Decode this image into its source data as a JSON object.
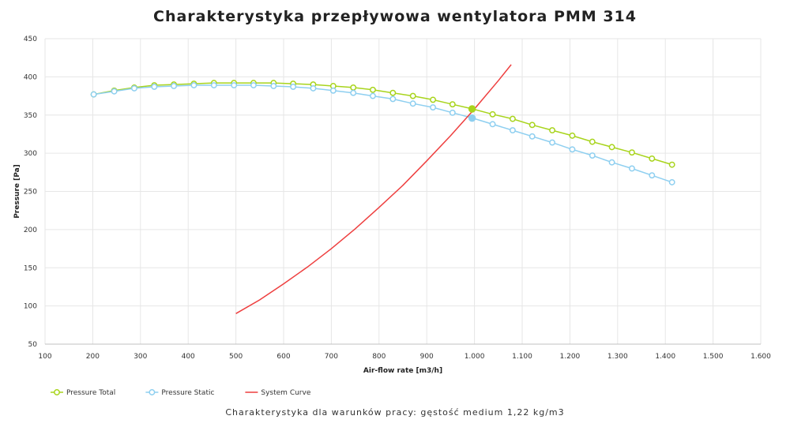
{
  "chart_data": {
    "type": "line",
    "title": "Charakterystyka przepływowa wentylatora PMM 314",
    "subtitle": "Charakterystyka dla warunków pracy: gęstość medium 1,22 kg/m3",
    "xlabel": "Air-flow rate [m3/h]",
    "ylabel": "Pressure [Pa]",
    "xlim": [
      100,
      1600
    ],
    "ylim": [
      50,
      450
    ],
    "x_ticks": [
      "100",
      "200",
      "300",
      "400",
      "500",
      "600",
      "700",
      "800",
      "900",
      "1.000",
      "1.100",
      "1.200",
      "1.300",
      "1.400",
      "1.500",
      "1.600"
    ],
    "y_ticks": [
      "50",
      "100",
      "150",
      "200",
      "250",
      "300",
      "350",
      "400",
      "450"
    ],
    "grid": true,
    "legend_position": "bottom-left",
    "series": [
      {
        "name": "Pressure Total",
        "color": "#a8d41c",
        "marker": "circle",
        "x": [
          202,
          245,
          287,
          329,
          370,
          412,
          454,
          496,
          537,
          579,
          620,
          662,
          704,
          746,
          787,
          829,
          871,
          913,
          954,
          996,
          1038,
          1080,
          1121,
          1163,
          1205,
          1247,
          1288,
          1330,
          1372,
          1414
        ],
        "y": [
          377,
          382,
          386,
          389,
          390,
          391,
          392,
          392,
          392,
          392,
          391,
          390,
          388,
          386,
          383,
          379,
          375,
          370,
          364,
          358,
          351,
          345,
          337,
          330,
          323,
          315,
          308,
          301,
          293,
          285
        ]
      },
      {
        "name": "Pressure Static",
        "color": "#8ecff0",
        "marker": "circle",
        "x": [
          202,
          245,
          287,
          329,
          370,
          412,
          454,
          496,
          537,
          579,
          620,
          662,
          704,
          746,
          787,
          829,
          871,
          913,
          954,
          996,
          1038,
          1080,
          1121,
          1163,
          1205,
          1247,
          1288,
          1330,
          1372,
          1414
        ],
        "y": [
          377,
          381,
          385,
          387,
          388,
          389,
          389,
          389,
          389,
          388,
          387,
          385,
          382,
          379,
          375,
          371,
          365,
          360,
          353,
          346,
          338,
          330,
          322,
          314,
          305,
          297,
          288,
          280,
          271,
          262
        ]
      },
      {
        "name": "System Curve",
        "color": "#ee3f3f",
        "marker": "none",
        "x": [
          500,
          550,
          600,
          650,
          700,
          750,
          800,
          850,
          900,
          950,
          1000,
          1050,
          1077
        ],
        "y": [
          90,
          108,
          129,
          151,
          175,
          201,
          229,
          258,
          290,
          323,
          358,
          395,
          416
        ]
      }
    ],
    "operating_points": [
      {
        "series": "Pressure Total",
        "x": 995,
        "y": 358,
        "color": "#a8d41c"
      },
      {
        "series": "Pressure Static",
        "x": 995,
        "y": 346,
        "color": "#8ecff0"
      }
    ]
  }
}
